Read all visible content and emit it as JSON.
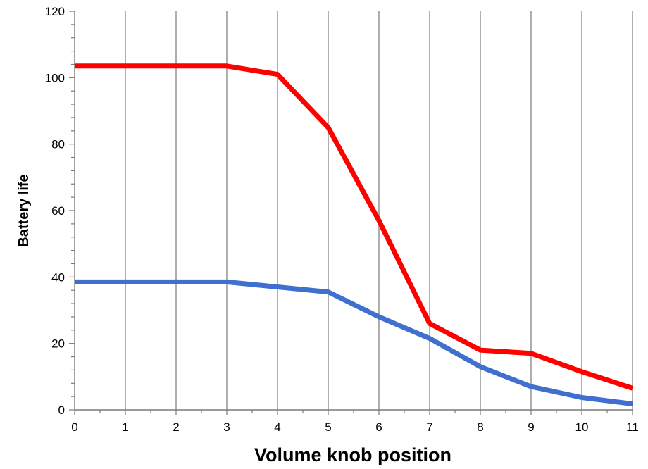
{
  "chart_data": {
    "type": "line",
    "title": "",
    "xlabel": "Volume knob position",
    "ylabel": "Battery life",
    "xlim": [
      0,
      11
    ],
    "ylim": [
      0,
      120
    ],
    "x_ticks": [
      0,
      1,
      2,
      3,
      4,
      5,
      6,
      7,
      8,
      9,
      10,
      11
    ],
    "y_ticks": [
      0,
      20,
      40,
      60,
      80,
      100,
      120
    ],
    "x_minor_step": 0.5,
    "y_minor_step": 4,
    "grid": "vertical major lines only",
    "legend": "none",
    "series": [
      {
        "color": "#ff0000",
        "x": [
          0,
          1,
          2,
          3,
          4,
          5,
          6,
          7,
          8,
          9,
          10,
          11
        ],
        "y": [
          103.5,
          103.5,
          103.5,
          103.5,
          101,
          85,
          57,
          26,
          18,
          17,
          11.5,
          6.5
        ]
      },
      {
        "color": "#3f6fcf",
        "x": [
          0,
          1,
          2,
          3,
          4,
          5,
          6,
          7,
          8,
          9,
          10,
          11
        ],
        "y": [
          38.5,
          38.5,
          38.5,
          38.5,
          37,
          35.5,
          28,
          21.5,
          13,
          7,
          3.7,
          1.8
        ]
      }
    ]
  }
}
